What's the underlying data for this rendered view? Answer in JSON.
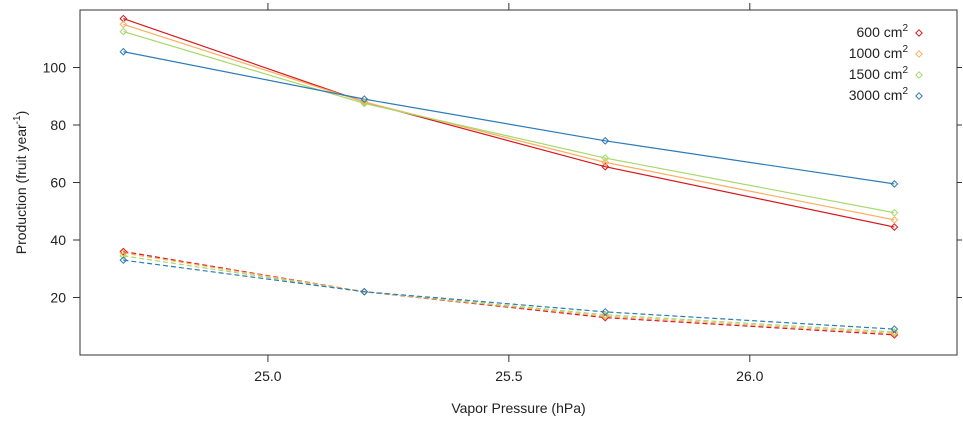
{
  "chart_data": {
    "type": "line",
    "title": "",
    "xlabel": "Vapor Pressure (hPa)",
    "ylabel": {
      "main": "Production (fruit year",
      "sup": "-1",
      "close": ")"
    },
    "xlim": [
      24.61,
      26.43
    ],
    "ylim": [
      0,
      120
    ],
    "x_ticks": [
      25.0,
      25.5,
      26.0
    ],
    "x_tick_labels": [
      "25.0",
      "25.5",
      "26.0"
    ],
    "y_ticks": [
      20,
      40,
      60,
      80,
      100
    ],
    "y_tick_labels": [
      "20",
      "40",
      "60",
      "80",
      "100"
    ],
    "grid": false,
    "legend_position": "top-right",
    "marker": "diamond-open",
    "legend": [
      {
        "label": "600",
        "unit": "cm",
        "sup": "2",
        "color": "#d7191c"
      },
      {
        "label": "1000",
        "unit": "cm",
        "sup": "2",
        "color": "#fdae61"
      },
      {
        "label": "1500",
        "unit": "cm",
        "sup": "2",
        "color": "#a6d96a"
      },
      {
        "label": "3000",
        "unit": "cm",
        "sup": "2",
        "color": "#2c7bb6"
      }
    ],
    "x": [
      24.7,
      25.2,
      25.7,
      26.3
    ],
    "series": [
      {
        "group": "600",
        "style": "solid",
        "color": "#d7191c",
        "values": [
          117,
          88,
          65.5,
          44.5
        ]
      },
      {
        "group": "1000",
        "style": "solid",
        "color": "#fdae61",
        "values": [
          115,
          88,
          67,
          47
        ]
      },
      {
        "group": "1500",
        "style": "solid",
        "color": "#a6d96a",
        "values": [
          112.5,
          87.5,
          68.5,
          49.5
        ]
      },
      {
        "group": "3000",
        "style": "solid",
        "color": "#2c7bb6",
        "values": [
          105.5,
          89,
          74.5,
          59.5
        ]
      },
      {
        "group": "600",
        "style": "dashed",
        "color": "#d7191c",
        "values": [
          36,
          22,
          13,
          7
        ]
      },
      {
        "group": "1000",
        "style": "dashed",
        "color": "#fdae61",
        "values": [
          35.5,
          22,
          13.5,
          7.5
        ]
      },
      {
        "group": "1500",
        "style": "dashed",
        "color": "#a6d96a",
        "values": [
          34.5,
          22,
          14,
          8
        ]
      },
      {
        "group": "3000",
        "style": "dashed",
        "color": "#2c7bb6",
        "values": [
          33,
          22,
          15,
          9
        ]
      }
    ]
  }
}
